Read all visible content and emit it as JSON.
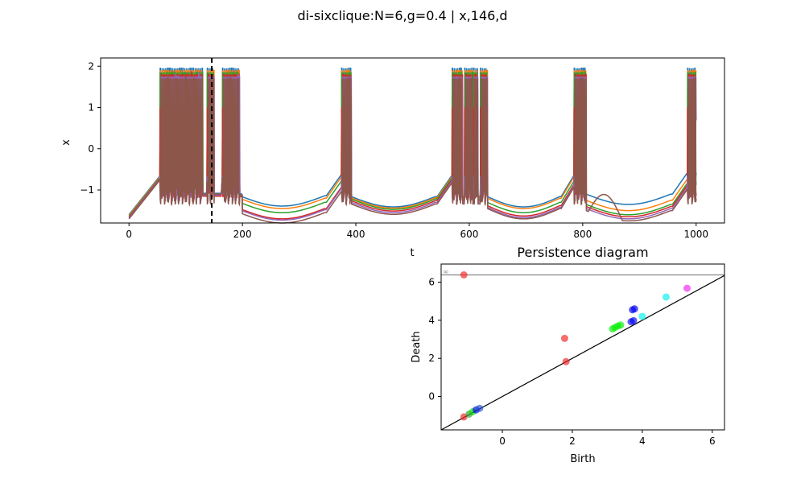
{
  "figure": {
    "suptitle": "di-sixclique:N=6,g=0.4 | x,146,d"
  },
  "chart_data": [
    {
      "type": "line",
      "title": "",
      "xlabel": "t",
      "ylabel": "x",
      "xlim": [
        -50,
        1050
      ],
      "ylim": [
        -1.8,
        2.2
      ],
      "xticks": [
        0,
        200,
        400,
        600,
        800,
        1000
      ],
      "yticks": [
        -1,
        0,
        1,
        2
      ],
      "grid": false,
      "marker_line": {
        "x": 146,
        "style": "dashed",
        "color": "#000000"
      },
      "spike_bursts": [
        {
          "start": 55,
          "end": 130
        },
        {
          "start": 138,
          "end": 150
        },
        {
          "start": 165,
          "end": 195
        },
        {
          "start": 375,
          "end": 392
        },
        {
          "start": 570,
          "end": 588
        },
        {
          "start": 592,
          "end": 606
        },
        {
          "start": 608,
          "end": 615
        },
        {
          "start": 620,
          "end": 632
        },
        {
          "start": 785,
          "end": 806
        },
        {
          "start": 985,
          "end": 1000
        }
      ],
      "series": [
        {
          "color": "#1f77b4",
          "quiet_levels": [
            -1.08,
            -1.14,
            -1.16,
            -1.16,
            -1.1,
            -1.08
          ]
        },
        {
          "color": "#ff7f0e",
          "quiet_levels": [
            -1.1,
            -1.2,
            -1.19,
            -1.2,
            -1.25,
            -1.2
          ]
        },
        {
          "color": "#2ca02c",
          "quiet_levels": [
            -1.12,
            -1.3,
            -1.22,
            -1.3,
            -1.35,
            -1.3
          ]
        },
        {
          "color": "#d62728",
          "quiet_levels": [
            -1.15,
            -1.45,
            -1.26,
            -1.38,
            -1.4,
            -1.4
          ]
        },
        {
          "color": "#9467bd",
          "quiet_levels": [
            -1.12,
            -1.48,
            -1.3,
            -1.42,
            -1.45,
            -1.45
          ]
        },
        {
          "color": "#8c564b",
          "quiet_levels": [
            -1.1,
            -1.55,
            -1.34,
            -1.45,
            -1.5,
            -1.5
          ]
        }
      ]
    },
    {
      "type": "scatter",
      "title": "Persistence diagram",
      "xlabel": "Birth",
      "ylabel": "Death",
      "xlim": [
        -1.75,
        6.35
      ],
      "ylim": [
        -1.75,
        6.95
      ],
      "xticks": [
        0,
        2,
        4,
        6
      ],
      "yticks": [
        0,
        2,
        4,
        6
      ],
      "infinity_label": "∞",
      "infinity_level": 6.38,
      "diagonal": true,
      "points": [
        {
          "x": -1.1,
          "y": 6.38,
          "color": "#ee2222"
        },
        {
          "x": -1.1,
          "y": -1.07,
          "color": "#ee2222"
        },
        {
          "x": -0.95,
          "y": -0.92,
          "color": "#2ca02c"
        },
        {
          "x": -0.85,
          "y": -0.8,
          "color": "#00dd00"
        },
        {
          "x": -0.75,
          "y": -0.7,
          "color": "#0000ee"
        },
        {
          "x": -0.65,
          "y": -0.62,
          "color": "#1f4fcc"
        },
        {
          "x": 1.78,
          "y": 3.05,
          "color": "#ee2222"
        },
        {
          "x": 1.82,
          "y": 1.83,
          "color": "#ee2222"
        },
        {
          "x": 3.15,
          "y": 3.55,
          "color": "#00ee00"
        },
        {
          "x": 3.22,
          "y": 3.62,
          "color": "#00ee00"
        },
        {
          "x": 3.3,
          "y": 3.7,
          "color": "#00ee00"
        },
        {
          "x": 3.38,
          "y": 3.75,
          "color": "#00ee00"
        },
        {
          "x": 3.68,
          "y": 3.92,
          "color": "#0000ee"
        },
        {
          "x": 3.75,
          "y": 3.98,
          "color": "#0000ee"
        },
        {
          "x": 3.72,
          "y": 4.55,
          "color": "#0000ee"
        },
        {
          "x": 3.78,
          "y": 4.6,
          "color": "#0000ee"
        },
        {
          "x": 4.0,
          "y": 4.2,
          "color": "#00eeee"
        },
        {
          "x": 4.68,
          "y": 5.22,
          "color": "#00eeee"
        },
        {
          "x": 5.28,
          "y": 5.68,
          "color": "#ee22ee"
        }
      ]
    }
  ]
}
